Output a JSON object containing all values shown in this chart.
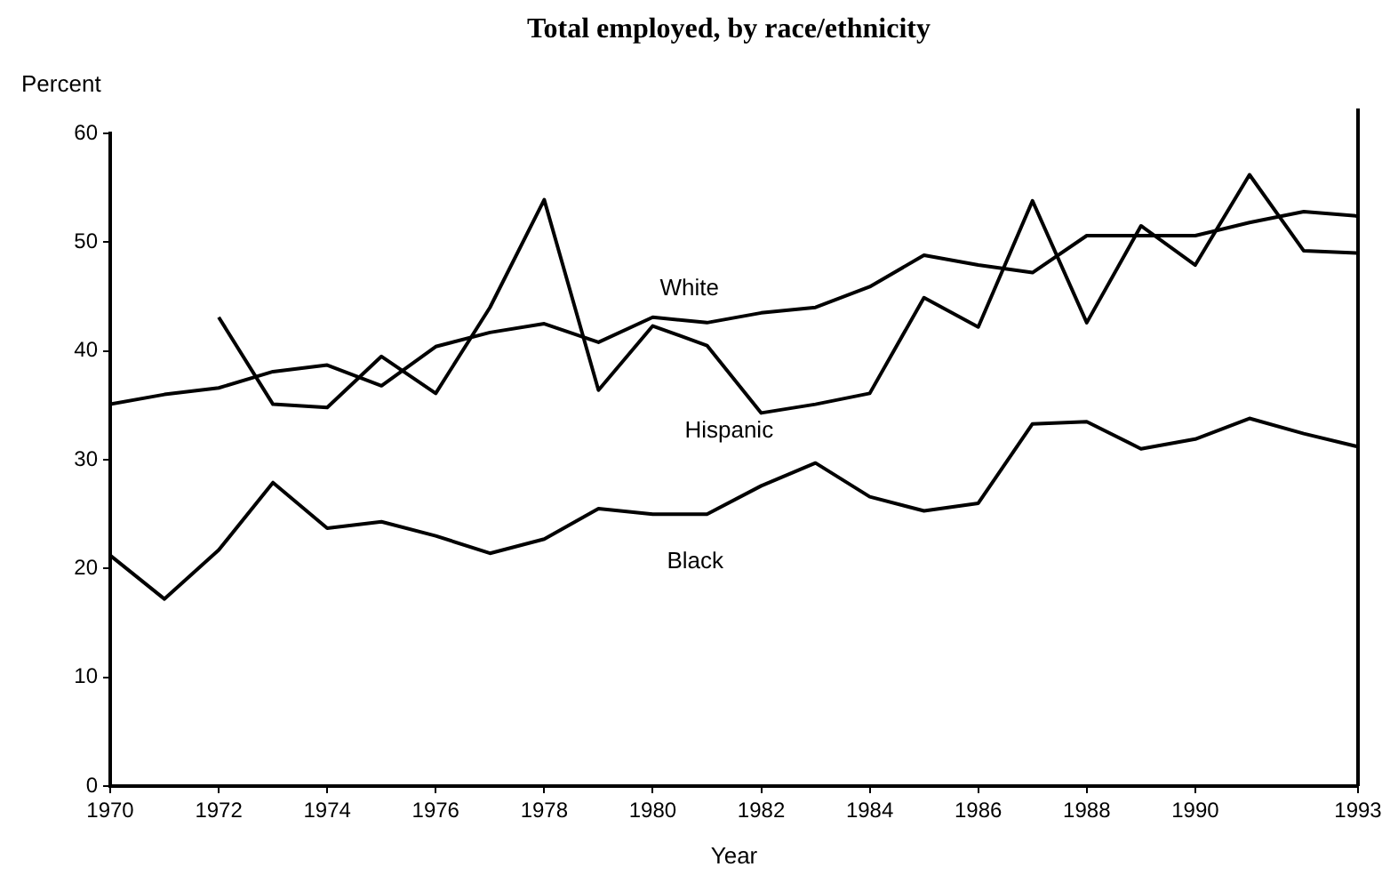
{
  "chart_data": {
    "type": "line",
    "title": "Total employed, by race/ethnicity",
    "xlabel": "Year",
    "ylabel": "Percent",
    "x": [
      1970,
      1971,
      1972,
      1973,
      1974,
      1975,
      1976,
      1977,
      1978,
      1979,
      1980,
      1981,
      1982,
      1983,
      1984,
      1985,
      1986,
      1987,
      1988,
      1989,
      1990,
      1991,
      1992,
      1993
    ],
    "series": [
      {
        "name": "White",
        "color": "#000000",
        "values": [
          35.1,
          36,
          36.6,
          38.1,
          38.7,
          36.8,
          40.4,
          41.7,
          42.5,
          40.8,
          43.1,
          42.6,
          43.5,
          44,
          45.9,
          48.8,
          47.9,
          47.2,
          50.6,
          50.6,
          50.6,
          51.8,
          52.8,
          52.4
        ]
      },
      {
        "name": "Hispanic",
        "color": "#000000",
        "values": [
          null,
          null,
          43.1,
          35.1,
          34.8,
          39.5,
          36.1,
          44,
          53.9,
          36.4,
          42.3,
          40.5,
          34.3,
          35.1,
          36.1,
          44.9,
          42.2,
          53.8,
          42.6,
          51.5,
          47.9,
          56.2,
          49.2,
          49
        ]
      },
      {
        "name": "Black",
        "color": "#000000",
        "values": [
          21.2,
          17.2,
          21.7,
          27.9,
          23.7,
          24.3,
          23,
          21.4,
          22.7,
          25.5,
          25,
          25,
          27.6,
          29.7,
          26.6,
          25.3,
          26,
          33.3,
          33.5,
          31,
          31.9,
          33.8,
          32.4,
          31.2
        ]
      }
    ],
    "xlim": [
      1970,
      1993
    ],
    "xticks": [
      1970,
      1972,
      1974,
      1976,
      1978,
      1980,
      1982,
      1984,
      1986,
      1988,
      1990,
      1993
    ],
    "ylim": [
      0,
      60
    ],
    "yticks": [
      0,
      10,
      20,
      30,
      40,
      50,
      60
    ],
    "grid": false,
    "legend": false,
    "marker": "none",
    "line_style": "solid"
  }
}
